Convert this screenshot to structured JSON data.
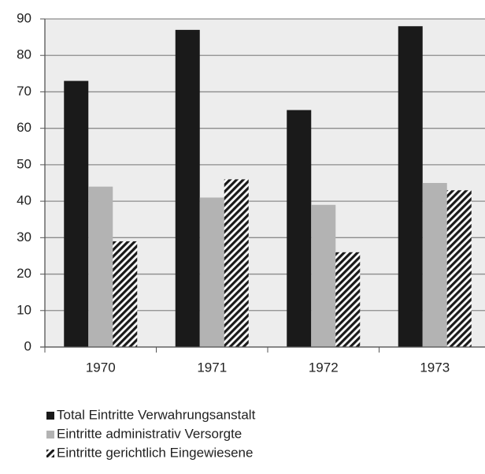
{
  "chart_data": {
    "type": "bar",
    "categories": [
      "1970",
      "1971",
      "1972",
      "1973"
    ],
    "series": [
      {
        "name": "Total Eintritte Verwahrungsanstalt",
        "color": "#1a1a1a",
        "values": [
          73,
          87,
          65,
          88
        ]
      },
      {
        "name": "Eintritte administrativ Versorgte",
        "color": "#b3b3b3",
        "values": [
          44,
          41,
          39,
          45
        ]
      },
      {
        "name": "Eintritte gerichtlich Eingewiesene",
        "color": "#1a1a1a",
        "hatch": true,
        "values": [
          29,
          46,
          26,
          43
        ]
      }
    ],
    "ylim": [
      0,
      90
    ],
    "yticks": [
      0,
      10,
      20,
      30,
      40,
      50,
      60,
      70,
      80,
      90
    ],
    "grid": true,
    "legend": "bottom"
  }
}
